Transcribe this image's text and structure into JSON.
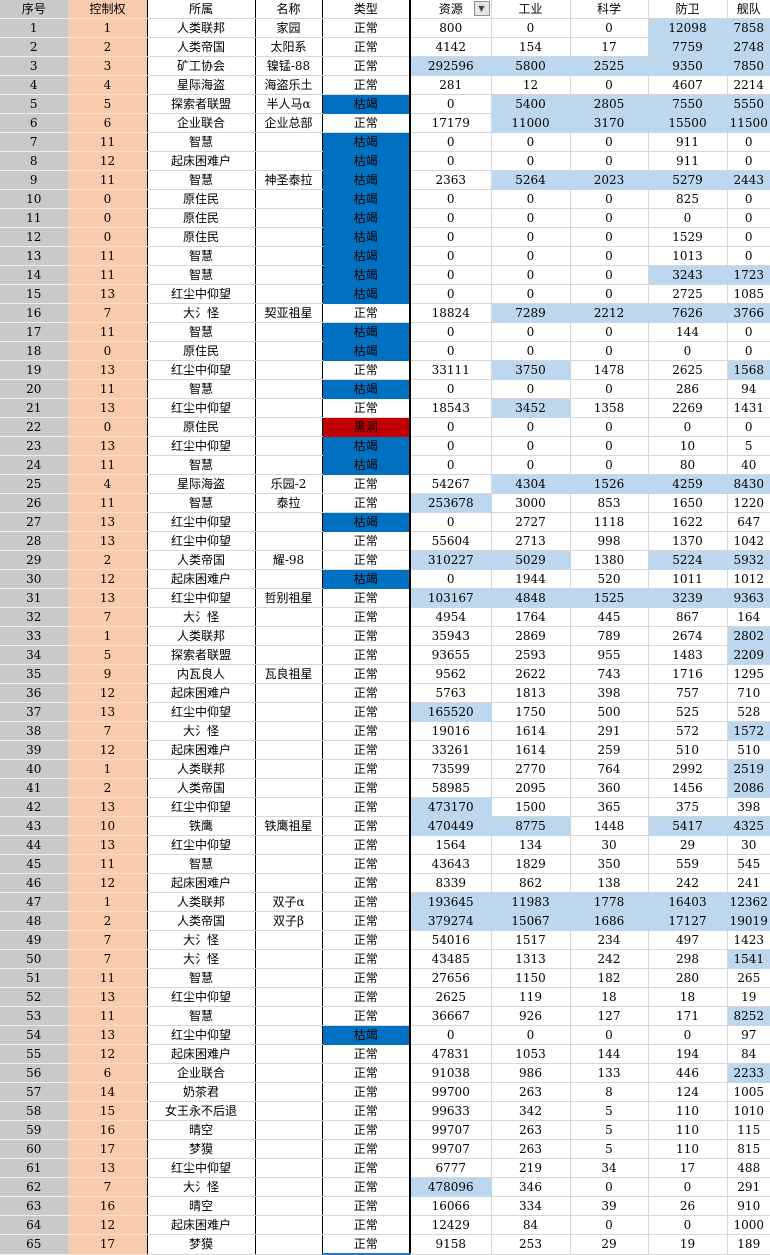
{
  "table": {
    "headers": [
      "序号",
      "控制权",
      "所属",
      "名称",
      "类型",
      "资源",
      "工业",
      "科学",
      "防卫",
      "舰队"
    ],
    "filter_icon": "▼",
    "type_labels": {
      "normal": "正常",
      "depleted": "枯竭",
      "black_hole": "黑洞"
    },
    "colors": {
      "depleted_fill": "#0070C0",
      "black_hole_fill": "#C00000",
      "highlight_fill": "#BDD7EE",
      "index_col_fill": "#C9C9C9",
      "control_col_fill": "#F8CBAD"
    },
    "selection": {
      "row": 65,
      "col": "类型"
    },
    "rows": [
      {
        "n": 1,
        "c": 1,
        "o": "人类联邦",
        "m": "家园",
        "t": "正常",
        "v": [
          800,
          0,
          0,
          12098,
          7858
        ],
        "h": [
          0,
          0,
          0,
          1,
          1
        ]
      },
      {
        "n": 2,
        "c": 2,
        "o": "人类帝国",
        "m": "太阳系",
        "t": "正常",
        "v": [
          4142,
          154,
          17,
          7759,
          2748
        ],
        "h": [
          0,
          0,
          0,
          1,
          1
        ]
      },
      {
        "n": 3,
        "c": 3,
        "o": "矿工协会",
        "m": "镍锰-88",
        "t": "正常",
        "v": [
          292596,
          5800,
          2525,
          9350,
          7850
        ],
        "h": [
          1,
          1,
          1,
          1,
          1
        ]
      },
      {
        "n": 4,
        "c": 4,
        "o": "星际海盗",
        "m": "海盗乐土",
        "t": "正常",
        "v": [
          281,
          12,
          0,
          4607,
          2214
        ],
        "h": [
          0,
          0,
          0,
          0,
          0
        ]
      },
      {
        "n": 5,
        "c": 5,
        "o": "探索者联盟",
        "m": "半人马α",
        "t": "枯竭",
        "v": [
          0,
          5400,
          2805,
          7550,
          5550
        ],
        "h": [
          0,
          1,
          1,
          1,
          1
        ]
      },
      {
        "n": 6,
        "c": 6,
        "o": "企业联合",
        "m": "企业总部",
        "t": "正常",
        "v": [
          17179,
          11000,
          3170,
          15500,
          11500
        ],
        "h": [
          0,
          1,
          1,
          1,
          1
        ]
      },
      {
        "n": 7,
        "c": 11,
        "o": "智慧",
        "m": "",
        "t": "枯竭",
        "v": [
          0,
          0,
          0,
          911,
          0
        ],
        "h": [
          0,
          0,
          0,
          0,
          0
        ]
      },
      {
        "n": 8,
        "c": 12,
        "o": "起床困难户",
        "m": "",
        "t": "枯竭",
        "v": [
          0,
          0,
          0,
          911,
          0
        ],
        "h": [
          0,
          0,
          0,
          0,
          0
        ]
      },
      {
        "n": 9,
        "c": 11,
        "o": "智慧",
        "m": "神圣泰拉",
        "t": "枯竭",
        "v": [
          2363,
          5264,
          2023,
          5279,
          2443
        ],
        "h": [
          0,
          1,
          1,
          1,
          1
        ]
      },
      {
        "n": 10,
        "c": 0,
        "o": "原住民",
        "m": "",
        "t": "枯竭",
        "v": [
          0,
          0,
          0,
          825,
          0
        ],
        "h": [
          0,
          0,
          0,
          0,
          0
        ]
      },
      {
        "n": 11,
        "c": 0,
        "o": "原住民",
        "m": "",
        "t": "枯竭",
        "v": [
          0,
          0,
          0,
          0,
          0
        ],
        "h": [
          0,
          0,
          0,
          0,
          0
        ]
      },
      {
        "n": 12,
        "c": 0,
        "o": "原住民",
        "m": "",
        "t": "枯竭",
        "v": [
          0,
          0,
          0,
          1529,
          0
        ],
        "h": [
          0,
          0,
          0,
          0,
          0
        ]
      },
      {
        "n": 13,
        "c": 11,
        "o": "智慧",
        "m": "",
        "t": "枯竭",
        "v": [
          0,
          0,
          0,
          1013,
          0
        ],
        "h": [
          0,
          0,
          0,
          0,
          0
        ]
      },
      {
        "n": 14,
        "c": 11,
        "o": "智慧",
        "m": "",
        "t": "枯竭",
        "v": [
          0,
          0,
          0,
          3243,
          1723
        ],
        "h": [
          0,
          0,
          0,
          1,
          1
        ]
      },
      {
        "n": 15,
        "c": 13,
        "o": "红尘中仰望",
        "m": "",
        "t": "枯竭",
        "v": [
          0,
          0,
          0,
          2725,
          1085
        ],
        "h": [
          0,
          0,
          0,
          0,
          0
        ]
      },
      {
        "n": 16,
        "c": 7,
        "o": "大氵怪",
        "m": "契亚祖星",
        "t": "正常",
        "v": [
          18824,
          7289,
          2212,
          7626,
          3766
        ],
        "h": [
          0,
          1,
          1,
          1,
          1
        ]
      },
      {
        "n": 17,
        "c": 11,
        "o": "智慧",
        "m": "",
        "t": "枯竭",
        "v": [
          0,
          0,
          0,
          144,
          0
        ],
        "h": [
          0,
          0,
          0,
          0,
          0
        ]
      },
      {
        "n": 18,
        "c": 0,
        "o": "原住民",
        "m": "",
        "t": "枯竭",
        "v": [
          0,
          0,
          0,
          0,
          0
        ],
        "h": [
          0,
          0,
          0,
          0,
          0
        ]
      },
      {
        "n": 19,
        "c": 13,
        "o": "红尘中仰望",
        "m": "",
        "t": "正常",
        "v": [
          33111,
          3750,
          1478,
          2625,
          1568
        ],
        "h": [
          0,
          1,
          0,
          0,
          1
        ]
      },
      {
        "n": 20,
        "c": 11,
        "o": "智慧",
        "m": "",
        "t": "枯竭",
        "v": [
          0,
          0,
          0,
          286,
          94
        ],
        "h": [
          0,
          0,
          0,
          0,
          0
        ]
      },
      {
        "n": 21,
        "c": 13,
        "o": "红尘中仰望",
        "m": "",
        "t": "正常",
        "v": [
          18543,
          3452,
          1358,
          2269,
          1431
        ],
        "h": [
          0,
          1,
          0,
          0,
          0
        ]
      },
      {
        "n": 22,
        "c": 0,
        "o": "原住民",
        "m": "",
        "t": "黑洞",
        "v": [
          0,
          0,
          0,
          0,
          0
        ],
        "h": [
          0,
          0,
          0,
          0,
          0
        ]
      },
      {
        "n": 23,
        "c": 13,
        "o": "红尘中仰望",
        "m": "",
        "t": "枯竭",
        "v": [
          0,
          0,
          0,
          10,
          5
        ],
        "h": [
          0,
          0,
          0,
          0,
          0
        ]
      },
      {
        "n": 24,
        "c": 11,
        "o": "智慧",
        "m": "",
        "t": "枯竭",
        "v": [
          0,
          0,
          0,
          80,
          40
        ],
        "h": [
          0,
          0,
          0,
          0,
          0
        ]
      },
      {
        "n": 25,
        "c": 4,
        "o": "星际海盗",
        "m": "乐园-2",
        "t": "正常",
        "v": [
          54267,
          4304,
          1526,
          4259,
          8430
        ],
        "h": [
          0,
          1,
          1,
          1,
          1
        ]
      },
      {
        "n": 26,
        "c": 11,
        "o": "智慧",
        "m": "泰拉",
        "t": "正常",
        "v": [
          253678,
          3000,
          853,
          1650,
          1220
        ],
        "h": [
          1,
          0,
          0,
          0,
          0
        ]
      },
      {
        "n": 27,
        "c": 13,
        "o": "红尘中仰望",
        "m": "",
        "t": "枯竭",
        "v": [
          0,
          2727,
          1118,
          1622,
          647
        ],
        "h": [
          0,
          0,
          0,
          0,
          0
        ]
      },
      {
        "n": 28,
        "c": 13,
        "o": "红尘中仰望",
        "m": "",
        "t": "正常",
        "v": [
          55604,
          2713,
          998,
          1370,
          1042
        ],
        "h": [
          0,
          0,
          0,
          0,
          0
        ]
      },
      {
        "n": 29,
        "c": 2,
        "o": "人类帝国",
        "m": "耀-98",
        "t": "正常",
        "v": [
          310227,
          5029,
          1380,
          5224,
          5932
        ],
        "h": [
          1,
          1,
          0,
          1,
          1
        ]
      },
      {
        "n": 30,
        "c": 12,
        "o": "起床困难户",
        "m": "",
        "t": "枯竭",
        "v": [
          0,
          1944,
          520,
          1011,
          1012
        ],
        "h": [
          0,
          0,
          0,
          0,
          0
        ]
      },
      {
        "n": 31,
        "c": 13,
        "o": "红尘中仰望",
        "m": "哲别祖星",
        "t": "正常",
        "v": [
          103167,
          4848,
          1525,
          3239,
          9363
        ],
        "h": [
          1,
          1,
          1,
          1,
          1
        ]
      },
      {
        "n": 32,
        "c": 7,
        "o": "大氵怪",
        "m": "",
        "t": "正常",
        "v": [
          4954,
          1764,
          445,
          867,
          164
        ],
        "h": [
          0,
          0,
          0,
          0,
          0
        ]
      },
      {
        "n": 33,
        "c": 1,
        "o": "人类联邦",
        "m": "",
        "t": "正常",
        "v": [
          35943,
          2869,
          789,
          2674,
          2802
        ],
        "h": [
          0,
          0,
          0,
          0,
          1
        ]
      },
      {
        "n": 34,
        "c": 5,
        "o": "探索者联盟",
        "m": "",
        "t": "正常",
        "v": [
          93655,
          2593,
          955,
          1483,
          2209
        ],
        "h": [
          0,
          0,
          0,
          0,
          1
        ]
      },
      {
        "n": 35,
        "c": 9,
        "o": "内瓦良人",
        "m": "瓦良祖星",
        "t": "正常",
        "v": [
          9562,
          2622,
          743,
          1716,
          1295
        ],
        "h": [
          0,
          0,
          0,
          0,
          0
        ]
      },
      {
        "n": 36,
        "c": 12,
        "o": "起床困难户",
        "m": "",
        "t": "正常",
        "v": [
          5763,
          1813,
          398,
          757,
          710
        ],
        "h": [
          0,
          0,
          0,
          0,
          0
        ]
      },
      {
        "n": 37,
        "c": 13,
        "o": "红尘中仰望",
        "m": "",
        "t": "正常",
        "v": [
          165520,
          1750,
          500,
          525,
          528
        ],
        "h": [
          1,
          0,
          0,
          0,
          0
        ]
      },
      {
        "n": 38,
        "c": 7,
        "o": "大氵怪",
        "m": "",
        "t": "正常",
        "v": [
          19016,
          1614,
          291,
          572,
          1572
        ],
        "h": [
          0,
          0,
          0,
          0,
          1
        ]
      },
      {
        "n": 39,
        "c": 12,
        "o": "起床困难户",
        "m": "",
        "t": "正常",
        "v": [
          33261,
          1614,
          259,
          510,
          510
        ],
        "h": [
          0,
          0,
          0,
          0,
          0
        ]
      },
      {
        "n": 40,
        "c": 1,
        "o": "人类联邦",
        "m": "",
        "t": "正常",
        "v": [
          73599,
          2770,
          764,
          2992,
          2519
        ],
        "h": [
          0,
          0,
          0,
          0,
          1
        ]
      },
      {
        "n": 41,
        "c": 2,
        "o": "人类帝国",
        "m": "",
        "t": "正常",
        "v": [
          58985,
          2095,
          360,
          1456,
          2086
        ],
        "h": [
          0,
          0,
          0,
          0,
          1
        ]
      },
      {
        "n": 42,
        "c": 13,
        "o": "红尘中仰望",
        "m": "",
        "t": "正常",
        "v": [
          473170,
          1500,
          365,
          375,
          398
        ],
        "h": [
          1,
          0,
          0,
          0,
          0
        ]
      },
      {
        "n": 43,
        "c": 10,
        "o": "铁鹰",
        "m": "铁鹰祖星",
        "t": "正常",
        "v": [
          470449,
          8775,
          1448,
          5417,
          4325
        ],
        "h": [
          1,
          1,
          0,
          1,
          1
        ]
      },
      {
        "n": 44,
        "c": 13,
        "o": "红尘中仰望",
        "m": "",
        "t": "正常",
        "v": [
          1564,
          134,
          30,
          29,
          30
        ],
        "h": [
          0,
          0,
          0,
          0,
          0
        ]
      },
      {
        "n": 45,
        "c": 11,
        "o": "智慧",
        "m": "",
        "t": "正常",
        "v": [
          43643,
          1829,
          350,
          559,
          545
        ],
        "h": [
          0,
          0,
          0,
          0,
          0
        ]
      },
      {
        "n": 46,
        "c": 12,
        "o": "起床困难户",
        "m": "",
        "t": "正常",
        "v": [
          8339,
          862,
          138,
          242,
          241
        ],
        "h": [
          0,
          0,
          0,
          0,
          0
        ]
      },
      {
        "n": 47,
        "c": 1,
        "o": "人类联邦",
        "m": "双子α",
        "t": "正常",
        "v": [
          193645,
          11983,
          1778,
          16403,
          12362
        ],
        "h": [
          1,
          1,
          1,
          1,
          1
        ]
      },
      {
        "n": 48,
        "c": 2,
        "o": "人类帝国",
        "m": "双子β",
        "t": "正常",
        "v": [
          379274,
          15067,
          1686,
          17127,
          19019
        ],
        "h": [
          1,
          1,
          1,
          1,
          1
        ]
      },
      {
        "n": 49,
        "c": 7,
        "o": "大氵怪",
        "m": "",
        "t": "正常",
        "v": [
          54016,
          1517,
          234,
          497,
          1423
        ],
        "h": [
          0,
          0,
          0,
          0,
          0
        ]
      },
      {
        "n": 50,
        "c": 7,
        "o": "大氵怪",
        "m": "",
        "t": "正常",
        "v": [
          43485,
          1313,
          242,
          298,
          1541
        ],
        "h": [
          0,
          0,
          0,
          0,
          1
        ]
      },
      {
        "n": 51,
        "c": 11,
        "o": "智慧",
        "m": "",
        "t": "正常",
        "v": [
          27656,
          1150,
          182,
          280,
          265
        ],
        "h": [
          0,
          0,
          0,
          0,
          0
        ]
      },
      {
        "n": 52,
        "c": 13,
        "o": "红尘中仰望",
        "m": "",
        "t": "正常",
        "v": [
          2625,
          119,
          18,
          18,
          19
        ],
        "h": [
          0,
          0,
          0,
          0,
          0
        ]
      },
      {
        "n": 53,
        "c": 11,
        "o": "智慧",
        "m": "",
        "t": "正常",
        "v": [
          36667,
          926,
          127,
          171,
          8252
        ],
        "h": [
          0,
          0,
          0,
          0,
          1
        ]
      },
      {
        "n": 54,
        "c": 13,
        "o": "红尘中仰望",
        "m": "",
        "t": "枯竭",
        "v": [
          0,
          0,
          0,
          0,
          97
        ],
        "h": [
          0,
          0,
          0,
          0,
          0
        ]
      },
      {
        "n": 55,
        "c": 12,
        "o": "起床困难户",
        "m": "",
        "t": "正常",
        "v": [
          47831,
          1053,
          144,
          194,
          84
        ],
        "h": [
          0,
          0,
          0,
          0,
          0
        ]
      },
      {
        "n": 56,
        "c": 6,
        "o": "企业联合",
        "m": "",
        "t": "正常",
        "v": [
          91038,
          986,
          133,
          446,
          2233
        ],
        "h": [
          0,
          0,
          0,
          0,
          1
        ]
      },
      {
        "n": 57,
        "c": 14,
        "o": "奶茶君",
        "m": "",
        "t": "正常",
        "v": [
          99700,
          263,
          8,
          124,
          1005
        ],
        "h": [
          0,
          0,
          0,
          0,
          0
        ]
      },
      {
        "n": 58,
        "c": 15,
        "o": "女王永不后退",
        "m": "",
        "t": "正常",
        "v": [
          99633,
          342,
          5,
          110,
          1010
        ],
        "h": [
          0,
          0,
          0,
          0,
          0
        ]
      },
      {
        "n": 59,
        "c": 16,
        "o": "晴空",
        "m": "",
        "t": "正常",
        "v": [
          99707,
          263,
          5,
          110,
          115
        ],
        "h": [
          0,
          0,
          0,
          0,
          0
        ]
      },
      {
        "n": 60,
        "c": 17,
        "o": "梦獏",
        "m": "",
        "t": "正常",
        "v": [
          99707,
          263,
          5,
          110,
          815
        ],
        "h": [
          0,
          0,
          0,
          0,
          0
        ]
      },
      {
        "n": 61,
        "c": 13,
        "o": "红尘中仰望",
        "m": "",
        "t": "正常",
        "v": [
          6777,
          219,
          34,
          17,
          488
        ],
        "h": [
          0,
          0,
          0,
          0,
          0
        ]
      },
      {
        "n": 62,
        "c": 7,
        "o": "大氵怪",
        "m": "",
        "t": "正常",
        "v": [
          478096,
          346,
          0,
          0,
          291
        ],
        "h": [
          1,
          0,
          0,
          0,
          0
        ]
      },
      {
        "n": 63,
        "c": 16,
        "o": "晴空",
        "m": "",
        "t": "正常",
        "v": [
          16066,
          334,
          39,
          26,
          910
        ],
        "h": [
          0,
          0,
          0,
          0,
          0
        ]
      },
      {
        "n": 64,
        "c": 12,
        "o": "起床困难户",
        "m": "",
        "t": "正常",
        "v": [
          12429,
          84,
          0,
          0,
          1000
        ],
        "h": [
          0,
          0,
          0,
          0,
          0
        ]
      },
      {
        "n": 65,
        "c": 17,
        "o": "梦獏",
        "m": "",
        "t": "正常",
        "v": [
          9158,
          253,
          29,
          19,
          189
        ],
        "h": [
          0,
          0,
          0,
          0,
          0
        ]
      }
    ]
  }
}
